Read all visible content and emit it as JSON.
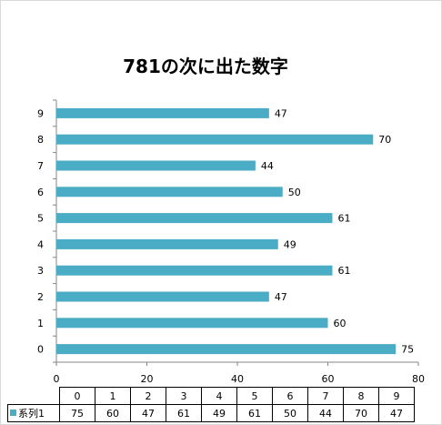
{
  "title": "781の次に出た数字",
  "chart_data": {
    "type": "bar",
    "orientation": "horizontal",
    "title": "781の次に出た数字",
    "categories": [
      "0",
      "1",
      "2",
      "3",
      "4",
      "5",
      "6",
      "7",
      "8",
      "9"
    ],
    "series": [
      {
        "name": "系列1",
        "values": [
          75,
          60,
          47,
          61,
          49,
          61,
          50,
          44,
          70,
          47
        ]
      }
    ],
    "xlim": [
      0,
      80
    ],
    "xticks": [
      "0",
      "20",
      "40",
      "60",
      "80"
    ],
    "xlabel": "",
    "ylabel": "",
    "grid": false,
    "data_labels": true,
    "data_table": true,
    "bar_color": "#4bacc6"
  }
}
